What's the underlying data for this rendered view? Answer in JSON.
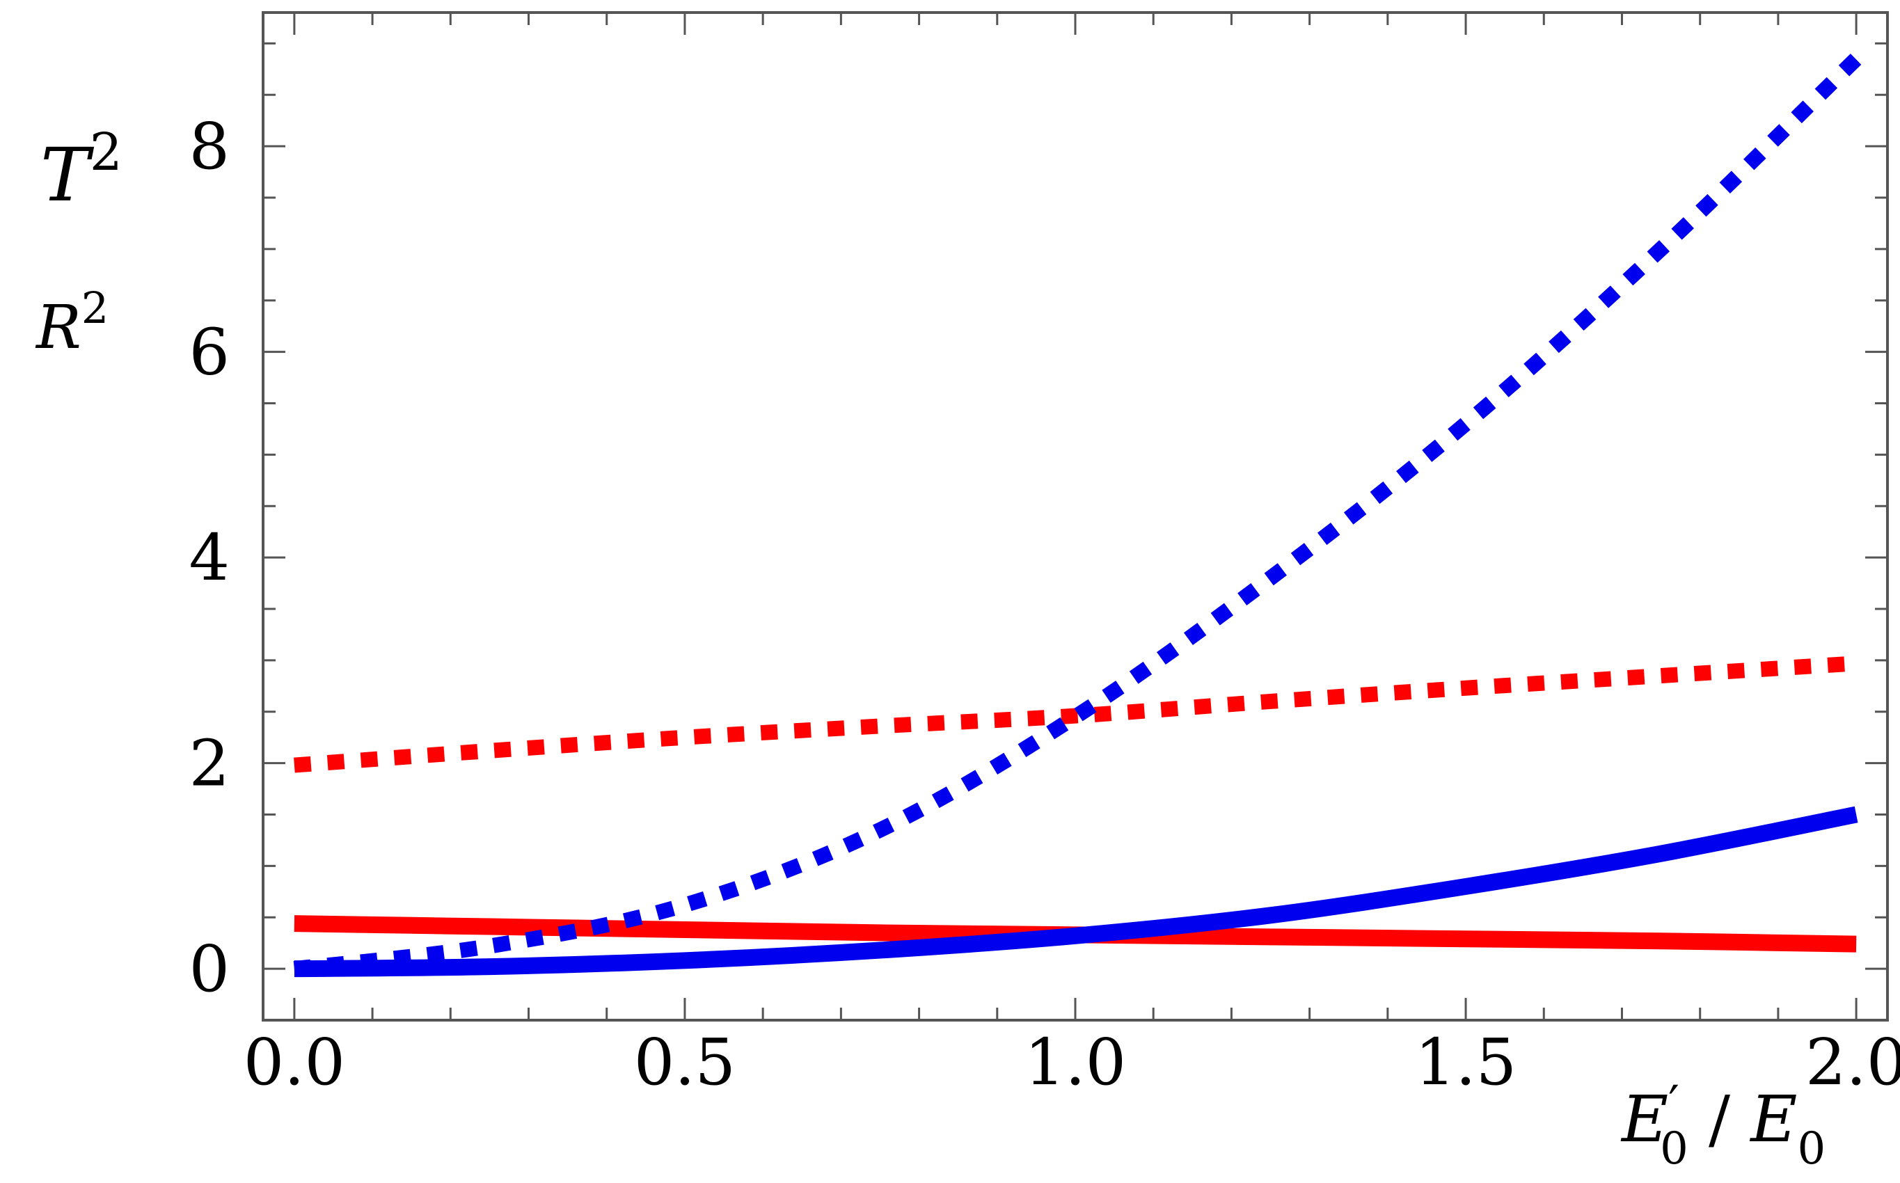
{
  "chart_data": {
    "type": "line",
    "title": "",
    "xlabel": "E'0 / E0",
    "ylabel_top": "T2",
    "ylabel_bottom": "R2",
    "xlabel_parts": {
      "base1": "E",
      "prime": "′",
      "sub1": "0",
      "slash": " / ",
      "base2": "E",
      "sub2": "0"
    },
    "ylabel_parts": {
      "top_base": "T",
      "top_sup": "2",
      "bottom_base": "R",
      "bottom_sup": "2"
    },
    "xlim": [
      -0.04,
      2.04
    ],
    "ylim": [
      -0.5,
      9.3
    ],
    "xticks": [
      0.0,
      0.5,
      1.0,
      1.5,
      2.0
    ],
    "xtick_labels": [
      "0.0",
      "0.5",
      "1.0",
      "1.5",
      "2.0"
    ],
    "yticks": [
      0,
      2,
      4,
      6,
      8
    ],
    "ytick_labels": [
      "0",
      "2",
      "4",
      "6",
      "8"
    ],
    "grid": false,
    "colors": {
      "red": "#ff0000",
      "blue": "#0000ee",
      "frame": "#555555"
    },
    "series": [
      {
        "color": "#ff0000",
        "style": "solid",
        "x": [
          0.0,
          0.25,
          0.5,
          0.75,
          1.0,
          1.25,
          1.5,
          1.75,
          2.0
        ],
        "y": [
          0.44,
          0.41,
          0.38,
          0.35,
          0.33,
          0.31,
          0.29,
          0.27,
          0.24
        ]
      },
      {
        "color": "#ff0000",
        "style": "dotted",
        "x": [
          0.0,
          0.25,
          0.5,
          0.75,
          1.0,
          1.25,
          1.5,
          1.75,
          2.0
        ],
        "y": [
          1.98,
          2.12,
          2.25,
          2.36,
          2.46,
          2.6,
          2.73,
          2.85,
          2.97
        ]
      },
      {
        "color": "#0000ee",
        "style": "solid",
        "x": [
          0.0,
          0.25,
          0.5,
          0.75,
          1.0,
          1.25,
          1.5,
          1.75,
          2.0
        ],
        "y": [
          0.0,
          0.02,
          0.08,
          0.18,
          0.32,
          0.52,
          0.8,
          1.12,
          1.5
        ]
      },
      {
        "color": "#0000ee",
        "style": "dotted",
        "x": [
          0.0,
          0.25,
          0.5,
          0.75,
          1.0,
          1.25,
          1.5,
          1.75,
          2.0
        ],
        "y": [
          0.0,
          0.22,
          0.62,
          1.35,
          2.45,
          3.8,
          5.3,
          7.0,
          8.85
        ]
      }
    ]
  }
}
